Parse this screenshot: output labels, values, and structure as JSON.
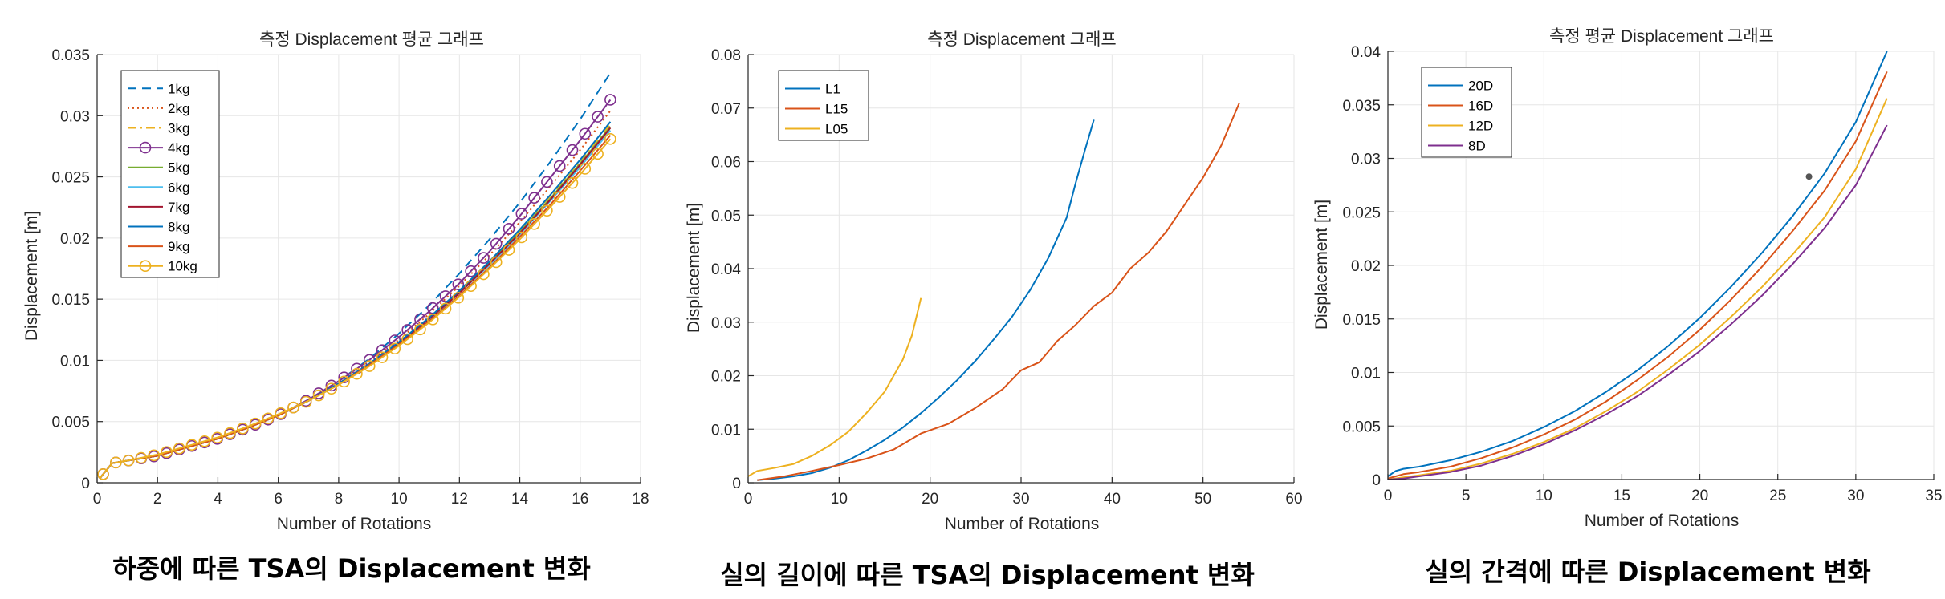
{
  "captions": [
    "하중에 따른 TSA의 Displacement 변화",
    "실의 길이에 따른 TSA의 Displacement 변화",
    "실의 간격에 따른 Displacement 변화"
  ],
  "chart_data": [
    {
      "type": "line",
      "title": "측정 Displacement 평균 그래프",
      "xlabel": "Number of Rotations",
      "ylabel": "Displacement [m]",
      "xlim": [
        0,
        18
      ],
      "ylim": [
        0,
        0.035
      ],
      "xticks": [
        0,
        2,
        4,
        6,
        8,
        10,
        12,
        14,
        16,
        18
      ],
      "yticks": [
        0,
        0.005,
        0.01,
        0.015,
        0.02,
        0.025,
        0.03,
        0.035
      ],
      "grid": true,
      "legend": "top-left",
      "series": [
        {
          "name": "1kg",
          "color": "#0072BD",
          "dash": "dashed",
          "marker": "none",
          "x": [
            0.1,
            0.5,
            1,
            2,
            3,
            4,
            5,
            6,
            7,
            8,
            9,
            10,
            11,
            12,
            13,
            14,
            15,
            16,
            17
          ],
          "y": [
            0.0004,
            0.0016,
            0.0018,
            0.0022,
            0.0029,
            0.0036,
            0.0045,
            0.0055,
            0.0068,
            0.0083,
            0.0101,
            0.0122,
            0.0145,
            0.0171,
            0.0199,
            0.0229,
            0.0262,
            0.0297,
            0.0335
          ]
        },
        {
          "name": "2kg",
          "color": "#D95319",
          "dash": "dotted",
          "marker": "none",
          "x": [
            0.1,
            0.5,
            1,
            2,
            3,
            4,
            5,
            6,
            7,
            8,
            9,
            10,
            11,
            12,
            13,
            14,
            15,
            16,
            17
          ],
          "y": [
            0.0004,
            0.0016,
            0.0018,
            0.0022,
            0.0029,
            0.0036,
            0.0045,
            0.0055,
            0.0067,
            0.0081,
            0.0098,
            0.0117,
            0.0138,
            0.0161,
            0.0186,
            0.0213,
            0.0242,
            0.0272,
            0.0304
          ]
        },
        {
          "name": "3kg",
          "color": "#EDB120",
          "dash": "dashdot",
          "marker": "none",
          "x": [
            0.1,
            0.5,
            1,
            2,
            3,
            4,
            5,
            6,
            7,
            8,
            9,
            10,
            11,
            12,
            13,
            14,
            15,
            16,
            17
          ],
          "y": [
            0.0004,
            0.0016,
            0.0018,
            0.0022,
            0.0029,
            0.0036,
            0.0045,
            0.0055,
            0.0067,
            0.0081,
            0.0097,
            0.0115,
            0.0135,
            0.0157,
            0.0181,
            0.0207,
            0.0234,
            0.0263,
            0.0293
          ]
        },
        {
          "name": "4kg",
          "color": "#7E2F8E",
          "dash": "solid",
          "marker": "circle",
          "x": [
            0.1,
            0.5,
            1,
            2,
            3,
            4,
            5,
            6,
            7,
            8,
            9,
            10,
            11,
            12,
            13,
            14,
            15,
            16,
            17
          ],
          "y": [
            0.0004,
            0.0016,
            0.0018,
            0.0022,
            0.0029,
            0.0036,
            0.0045,
            0.0055,
            0.0068,
            0.0083,
            0.01,
            0.0119,
            0.014,
            0.0163,
            0.0189,
            0.0218,
            0.0249,
            0.028,
            0.0313
          ]
        },
        {
          "name": "5kg",
          "color": "#77AC30",
          "dash": "solid",
          "marker": "none",
          "x": [
            0.1,
            0.5,
            1,
            2,
            3,
            4,
            5,
            6,
            7,
            8,
            9,
            10,
            11,
            12,
            13,
            14,
            15,
            16,
            17
          ],
          "y": [
            0.0004,
            0.0016,
            0.0018,
            0.0022,
            0.0029,
            0.0036,
            0.0045,
            0.0055,
            0.0067,
            0.0081,
            0.0097,
            0.0115,
            0.0134,
            0.0156,
            0.018,
            0.0205,
            0.0232,
            0.0261,
            0.0291
          ]
        },
        {
          "name": "6kg",
          "color": "#4DBEEE",
          "dash": "solid",
          "marker": "none",
          "x": [
            0.1,
            0.5,
            1,
            2,
            3,
            4,
            5,
            6,
            7,
            8,
            9,
            10,
            11,
            12,
            13,
            14,
            15,
            16,
            17
          ],
          "y": [
            0.0004,
            0.0016,
            0.0018,
            0.0022,
            0.0029,
            0.0036,
            0.0045,
            0.0055,
            0.0067,
            0.0081,
            0.0096,
            0.0114,
            0.0133,
            0.0155,
            0.0178,
            0.0203,
            0.023,
            0.0258,
            0.0288
          ]
        },
        {
          "name": "7kg",
          "color": "#A2142F",
          "dash": "solid",
          "marker": "none",
          "x": [
            0.1,
            0.5,
            1,
            2,
            3,
            4,
            5,
            6,
            7,
            8,
            9,
            10,
            11,
            12,
            13,
            14,
            15,
            16,
            17
          ],
          "y": [
            0.0004,
            0.0016,
            0.0018,
            0.0022,
            0.0029,
            0.0036,
            0.0045,
            0.0055,
            0.0067,
            0.0081,
            0.0096,
            0.0114,
            0.0134,
            0.0155,
            0.0179,
            0.0204,
            0.0231,
            0.026,
            0.029
          ]
        },
        {
          "name": "8kg",
          "color": "#0072BD",
          "dash": "solid",
          "marker": "none",
          "x": [
            0.1,
            0.5,
            1,
            2,
            3,
            4,
            5,
            6,
            7,
            8,
            9,
            10,
            11,
            12,
            13,
            14,
            15,
            16,
            17
          ],
          "y": [
            0.0004,
            0.0016,
            0.0018,
            0.0022,
            0.0029,
            0.0036,
            0.0045,
            0.0055,
            0.0067,
            0.0081,
            0.0097,
            0.0115,
            0.0135,
            0.0157,
            0.0181,
            0.0207,
            0.0235,
            0.0264,
            0.0295
          ]
        },
        {
          "name": "9kg",
          "color": "#D95319",
          "dash": "solid",
          "marker": "none",
          "x": [
            0.1,
            0.5,
            1,
            2,
            3,
            4,
            5,
            6,
            7,
            8,
            9,
            10,
            11,
            12,
            13,
            14,
            15,
            16,
            17
          ],
          "y": [
            0.0004,
            0.0016,
            0.0018,
            0.0022,
            0.0029,
            0.0036,
            0.0045,
            0.0055,
            0.0067,
            0.008,
            0.0096,
            0.0113,
            0.0132,
            0.0153,
            0.0176,
            0.0201,
            0.0227,
            0.0255,
            0.0284
          ]
        },
        {
          "name": "10kg",
          "color": "#EDB120",
          "dash": "solid",
          "marker": "circle",
          "x": [
            0.1,
            0.5,
            1,
            2,
            3,
            4,
            5,
            6,
            7,
            8,
            9,
            10,
            11,
            12,
            13,
            14,
            15,
            16,
            17
          ],
          "y": [
            0.0004,
            0.0016,
            0.0018,
            0.0023,
            0.003,
            0.0037,
            0.0046,
            0.0056,
            0.0067,
            0.008,
            0.0095,
            0.0112,
            0.0131,
            0.0152,
            0.0175,
            0.0199,
            0.0225,
            0.0252,
            0.0281
          ]
        }
      ]
    },
    {
      "type": "line",
      "title": "측정 Displacement 그래프",
      "xlabel": "Number of Rotations",
      "ylabel": "Displacement [m]",
      "xlim": [
        0,
        60
      ],
      "ylim": [
        0,
        0.08
      ],
      "xticks": [
        0,
        10,
        20,
        30,
        40,
        50,
        60
      ],
      "yticks": [
        0,
        0.01,
        0.02,
        0.03,
        0.04,
        0.05,
        0.06,
        0.07,
        0.08
      ],
      "grid": true,
      "legend": "top-left",
      "series": [
        {
          "name": "L1",
          "color": "#0072BD",
          "dash": "solid",
          "marker": "none",
          "x": [
            1,
            3,
            5,
            7,
            9,
            11,
            13,
            15,
            17,
            19,
            21,
            23,
            25,
            27,
            29,
            31,
            33,
            35,
            36,
            37,
            38
          ],
          "y": [
            0.0005,
            0.0008,
            0.0012,
            0.0018,
            0.0028,
            0.0042,
            0.006,
            0.008,
            0.0103,
            0.013,
            0.016,
            0.0192,
            0.0228,
            0.0268,
            0.031,
            0.036,
            0.042,
            0.0495,
            0.056,
            0.062,
            0.0678
          ]
        },
        {
          "name": "L15",
          "color": "#D95319",
          "dash": "solid",
          "marker": "none",
          "x": [
            1,
            4,
            7,
            10,
            13,
            16,
            19,
            22,
            25,
            28,
            30,
            32,
            34,
            36,
            38,
            40,
            42,
            44,
            46,
            48,
            50,
            52,
            54
          ],
          "y": [
            0.0005,
            0.0012,
            0.0022,
            0.0033,
            0.0045,
            0.0062,
            0.0092,
            0.011,
            0.014,
            0.0175,
            0.021,
            0.0225,
            0.0265,
            0.0295,
            0.033,
            0.0355,
            0.04,
            0.043,
            0.047,
            0.052,
            0.057,
            0.063,
            0.071
          ]
        },
        {
          "name": "L05",
          "color": "#EDB120",
          "dash": "solid",
          "marker": "none",
          "x": [
            0,
            1,
            3,
            5,
            7,
            9,
            11,
            13,
            15,
            17,
            18,
            19
          ],
          "y": [
            0.0012,
            0.0022,
            0.0028,
            0.0035,
            0.005,
            0.007,
            0.0095,
            0.013,
            0.017,
            0.023,
            0.0275,
            0.0345
          ]
        }
      ]
    },
    {
      "type": "line",
      "title": "측정 평균 Displacement 그래프",
      "xlabel": "Number of Rotations",
      "ylabel": "Displacement [m]",
      "xlim": [
        0,
        35
      ],
      "ylim": [
        0,
        0.04
      ],
      "xticks": [
        0,
        5,
        10,
        15,
        20,
        25,
        30,
        35
      ],
      "yticks": [
        0,
        0.005,
        0.01,
        0.015,
        0.02,
        0.025,
        0.03,
        0.035,
        0.04
      ],
      "grid": true,
      "legend": "top-left",
      "series": [
        {
          "name": "20D",
          "color": "#0072BD",
          "dash": "solid",
          "marker": "none",
          "x": [
            0,
            0.5,
            1,
            2,
            4,
            6,
            8,
            10,
            12,
            14,
            16,
            18,
            20,
            22,
            24,
            26,
            28,
            30,
            32
          ],
          "y": [
            0.0003,
            0.0008,
            0.001,
            0.0012,
            0.0018,
            0.0026,
            0.0036,
            0.0049,
            0.0064,
            0.0082,
            0.0102,
            0.0125,
            0.0151,
            0.018,
            0.0212,
            0.0247,
            0.0286,
            0.0334,
            0.04
          ]
        },
        {
          "name": "16D",
          "color": "#D95319",
          "dash": "solid",
          "marker": "none",
          "x": [
            0,
            0.5,
            1,
            2,
            4,
            6,
            8,
            10,
            12,
            14,
            16,
            18,
            20,
            22,
            24,
            26,
            28,
            30,
            32
          ],
          "y": [
            0.0001,
            0.0003,
            0.0005,
            0.0007,
            0.0012,
            0.002,
            0.003,
            0.0042,
            0.0056,
            0.0073,
            0.0093,
            0.0115,
            0.014,
            0.0168,
            0.0199,
            0.0233,
            0.027,
            0.0316,
            0.0381
          ]
        },
        {
          "name": "12D",
          "color": "#EDB120",
          "dash": "solid",
          "marker": "none",
          "x": [
            0,
            1,
            2,
            4,
            6,
            8,
            10,
            12,
            14,
            16,
            18,
            20,
            22,
            24,
            26,
            28,
            30,
            32
          ],
          "y": [
            0.0,
            0.0002,
            0.0004,
            0.0008,
            0.0015,
            0.0024,
            0.0035,
            0.0048,
            0.0064,
            0.0082,
            0.0103,
            0.0126,
            0.0152,
            0.018,
            0.0211,
            0.0245,
            0.029,
            0.0356
          ]
        },
        {
          "name": "8D",
          "color": "#7E2F8E",
          "dash": "solid",
          "marker": "none",
          "x": [
            0,
            1,
            2,
            4,
            6,
            8,
            10,
            12,
            14,
            16,
            18,
            20,
            22,
            24,
            26,
            28,
            30,
            32
          ],
          "y": [
            0.0,
            0.0001,
            0.0003,
            0.0007,
            0.0013,
            0.0022,
            0.0033,
            0.0046,
            0.0061,
            0.0078,
            0.0098,
            0.012,
            0.0145,
            0.0172,
            0.0202,
            0.0235,
            0.0275,
            0.0331
          ]
        }
      ],
      "annotations": [
        {
          "type": "point",
          "x": 27,
          "y": 0.0283,
          "color": "#555555"
        }
      ]
    }
  ]
}
